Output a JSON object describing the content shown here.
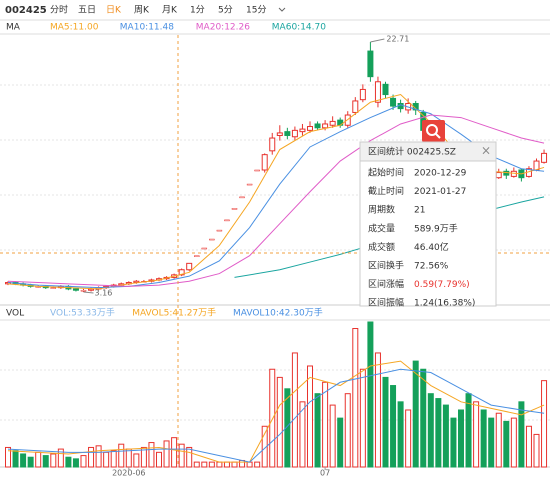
{
  "toolbar": {
    "code": "002425",
    "tabs": [
      "分时",
      "五日",
      "日K",
      "周K",
      "月K",
      "1分",
      "5分",
      "15分"
    ],
    "active": 2
  },
  "chart_data": {
    "type": "candlestick",
    "ma_legend": {
      "title": "MA",
      "items": [
        {
          "text": "MA5:11.00",
          "color": "#f5a623",
          "x": [
            0,
            4,
            8,
            12,
            16,
            20,
            24,
            28,
            32,
            36,
            40,
            44,
            48,
            52,
            56,
            60,
            64,
            68,
            71
          ],
          "values": [
            3.8,
            3.6,
            3.5,
            3.4,
            3.8,
            4.1,
            4.7,
            6.8,
            10.2,
            14.3,
            15.7,
            16.2,
            18.0,
            18.6,
            16.4,
            13.7,
            12.6,
            12.4,
            12.9
          ]
        },
        {
          "text": "MA10:11.48",
          "color": "#4a90e2",
          "x": [
            0,
            4,
            8,
            12,
            16,
            20,
            24,
            28,
            32,
            36,
            40,
            44,
            48,
            52,
            56,
            60,
            64,
            68,
            71
          ],
          "values": [
            3.9,
            3.7,
            3.6,
            3.5,
            3.6,
            3.9,
            4.4,
            5.6,
            8.2,
            11.6,
            14.5,
            15.7,
            16.8,
            17.8,
            17.1,
            15.5,
            13.8,
            12.8,
            12.6
          ]
        },
        {
          "text": "MA20:12.26",
          "color": "#e05cc8",
          "x": [
            0,
            4,
            8,
            12,
            16,
            20,
            24,
            28,
            32,
            36,
            40,
            44,
            48,
            52,
            56,
            60,
            64,
            68,
            71
          ],
          "values": [
            4.0,
            3.9,
            3.8,
            3.7,
            3.6,
            3.7,
            4.0,
            4.6,
            6.0,
            8.5,
            11.0,
            13.4,
            15.0,
            16.3,
            17.0,
            16.8,
            16.0,
            15.2,
            14.8
          ]
        },
        {
          "text": "MA60:14.70",
          "color": "#1aa5a0",
          "x": [
            30,
            36,
            40,
            44,
            48,
            52,
            56,
            60,
            64,
            68,
            71
          ],
          "values": [
            4.3,
            4.9,
            5.5,
            6.1,
            6.8,
            7.5,
            8.2,
            8.9,
            9.6,
            10.2,
            10.6
          ]
        }
      ]
    },
    "candles": {
      "open": [
        3.8,
        3.9,
        3.8,
        3.7,
        3.6,
        3.6,
        3.5,
        3.5,
        3.6,
        3.4,
        3.3,
        3.3,
        3.4,
        3.5,
        3.6,
        3.7,
        3.8,
        3.9,
        4.0,
        4.0,
        4.1,
        4.2,
        4.3,
        4.5,
        4.9,
        6.0,
        6.6,
        7.3,
        8.0,
        8.8,
        9.7,
        10.6,
        11.6,
        12.7,
        12.7,
        14.2,
        15.4,
        15.7,
        15.3,
        15.7,
        15.8,
        16.3,
        16.0,
        16.2,
        16.6,
        16.2,
        17.2,
        18.2,
        22.0,
        18.0,
        19.4,
        18.3,
        17.9,
        17.4,
        17.9,
        17.2,
        15.6,
        14.4,
        13.8,
        13.4,
        13.1,
        12.8,
        12.5,
        13.0,
        12.5,
        12.1,
        12.6,
        12.2,
        12.7,
        12.2,
        12.7,
        13.3
      ],
      "high": [
        4.0,
        4.0,
        3.9,
        3.8,
        3.7,
        3.7,
        3.6,
        3.7,
        3.7,
        3.5,
        3.4,
        3.5,
        3.6,
        3.7,
        3.8,
        3.9,
        4.0,
        4.1,
        4.1,
        4.2,
        4.3,
        4.4,
        4.6,
        5.0,
        5.4,
        6.0,
        6.6,
        7.3,
        8.0,
        8.8,
        9.7,
        10.6,
        11.6,
        12.7,
        14.0,
        15.6,
        16.2,
        16.0,
        16.1,
        16.3,
        16.5,
        16.5,
        16.6,
        16.9,
        16.8,
        17.3,
        18.4,
        19.4,
        22.71,
        20.0,
        19.6,
        18.6,
        18.2,
        18.3,
        18.1,
        17.4,
        15.8,
        14.8,
        14.1,
        13.7,
        13.3,
        13.0,
        13.2,
        13.1,
        12.7,
        12.8,
        12.8,
        12.9,
        12.8,
        13.0,
        13.6,
        14.3
      ],
      "low": [
        3.7,
        3.7,
        3.6,
        3.5,
        3.5,
        3.4,
        3.4,
        3.4,
        3.3,
        3.2,
        3.16,
        3.2,
        3.3,
        3.4,
        3.5,
        3.6,
        3.7,
        3.8,
        3.9,
        3.9,
        4.0,
        4.1,
        4.2,
        4.4,
        4.8,
        6.0,
        6.6,
        7.3,
        8.0,
        8.8,
        9.7,
        10.6,
        11.6,
        12.7,
        12.5,
        13.9,
        15.0,
        15.1,
        15.0,
        15.4,
        15.6,
        15.8,
        15.8,
        16.0,
        16.0,
        16.0,
        17.0,
        18.0,
        19.6,
        17.6,
        18.3,
        17.4,
        17.2,
        17.1,
        17.0,
        15.6,
        14.2,
        13.6,
        13.2,
        12.9,
        12.5,
        12.3,
        12.3,
        12.2,
        11.9,
        12.0,
        12.0,
        12.1,
        11.8,
        12.1,
        12.6,
        13.2
      ],
      "close": [
        3.9,
        3.8,
        3.7,
        3.6,
        3.6,
        3.5,
        3.5,
        3.6,
        3.4,
        3.3,
        3.3,
        3.4,
        3.5,
        3.6,
        3.7,
        3.8,
        3.9,
        4.0,
        4.0,
        4.1,
        4.2,
        4.3,
        4.5,
        4.9,
        5.4,
        6.0,
        6.6,
        7.3,
        8.0,
        8.8,
        9.7,
        10.6,
        11.6,
        12.7,
        13.9,
        15.2,
        15.6,
        15.4,
        15.8,
        15.9,
        16.1,
        16.0,
        16.3,
        16.5,
        16.2,
        17.0,
        18.1,
        19.0,
        20.0,
        19.6,
        18.6,
        17.7,
        17.5,
        17.9,
        17.4,
        15.8,
        14.5,
        13.9,
        13.5,
        13.2,
        12.8,
        12.6,
        12.9,
        12.4,
        12.2,
        12.5,
        12.3,
        12.6,
        12.1,
        12.8,
        13.4,
        14.0
      ],
      "up_color": "#e8322d",
      "down_color": "#14a05a"
    },
    "vol_legend": {
      "title": "VOL",
      "items": [
        {
          "text": "VOL:53.33万手",
          "color": "#8ab8e8"
        },
        {
          "text": "MAVOL5:41.27万手",
          "color": "#f5a623",
          "x": [
            0,
            4,
            8,
            12,
            16,
            20,
            24,
            28,
            32,
            36,
            40,
            44,
            48,
            52,
            56,
            60,
            64,
            68,
            71
          ],
          "values": [
            10,
            9,
            8,
            10,
            11,
            12,
            9,
            3,
            3,
            38,
            55,
            50,
            62,
            65,
            50,
            40,
            36,
            32,
            38
          ]
        },
        {
          "text": "MAVOL10:42.30万手",
          "color": "#4a90e2",
          "x": [
            0,
            4,
            8,
            12,
            16,
            20,
            24,
            28,
            32,
            36,
            40,
            44,
            48,
            52,
            56,
            60,
            64,
            68,
            71
          ],
          "values": [
            11,
            10,
            9,
            9,
            10,
            11,
            11,
            7,
            3,
            20,
            40,
            52,
            56,
            60,
            58,
            48,
            38,
            35,
            33
          ]
        }
      ]
    },
    "volume": [
      12,
      10,
      8,
      6,
      9,
      7,
      8,
      11,
      6,
      5,
      7,
      12,
      13,
      9,
      10,
      14,
      11,
      8,
      12,
      15,
      9,
      16,
      18,
      14,
      12,
      3,
      3,
      3,
      3,
      3,
      3,
      4,
      3,
      3,
      25,
      60,
      55,
      48,
      70,
      40,
      62,
      45,
      52,
      38,
      30,
      45,
      85,
      60,
      89,
      70,
      55,
      50,
      40,
      35,
      65,
      60,
      45,
      42,
      38,
      30,
      35,
      45,
      40,
      35,
      30,
      33,
      28,
      30,
      40,
      25,
      20,
      53
    ],
    "x_labels": [
      {
        "x": 16,
        "text": "2020-06"
      },
      {
        "x": 42,
        "text": "07"
      }
    ]
  },
  "popup": {
    "title": "区间统计 002425.SZ",
    "rows": [
      [
        "起始时间",
        "2020-12-29"
      ],
      [
        "截止时间",
        "2021-01-27"
      ],
      [
        "周期数",
        "21"
      ],
      [
        "成交量",
        "589.9万手"
      ],
      [
        "成交额",
        "46.40亿"
      ],
      [
        "区间换手",
        "72.56%"
      ],
      [
        "区间涨幅",
        "0.59(7.79%)"
      ],
      [
        "区间振幅",
        "1.24(16.38%)"
      ]
    ],
    "highlight_row": 6
  }
}
